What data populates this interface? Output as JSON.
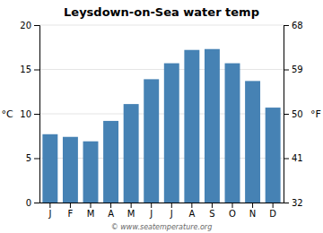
{
  "chart_data": {
    "type": "bar",
    "title": "Leysdown-on-Sea water temp",
    "categories": [
      "J",
      "F",
      "M",
      "A",
      "M",
      "J",
      "J",
      "A",
      "S",
      "O",
      "N",
      "D"
    ],
    "values": [
      7.7,
      7.4,
      6.9,
      9.2,
      11.1,
      13.9,
      15.7,
      17.2,
      17.3,
      15.7,
      13.7,
      10.7
    ],
    "ylabel": "°C",
    "y2label": "°F",
    "ylim": [
      0,
      20
    ],
    "yticks": [
      0,
      5,
      10,
      15,
      20
    ],
    "y2lim": [
      32,
      68
    ],
    "y2ticks": [
      32,
      41,
      50,
      59,
      68
    ],
    "grid": true,
    "annotations": [
      "© www.seatemperature.org"
    ]
  }
}
